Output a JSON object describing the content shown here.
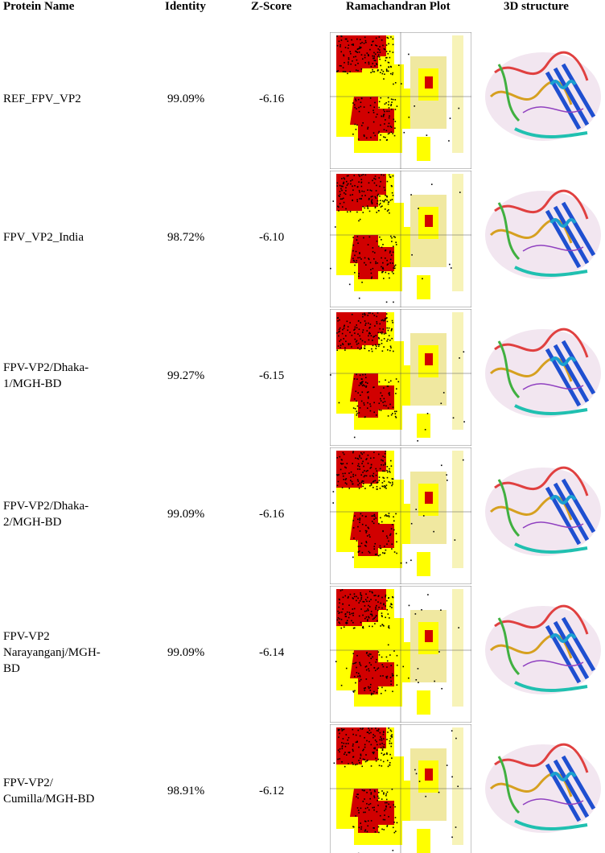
{
  "table": {
    "headers": [
      "Protein Name",
      "Identity",
      "Z-Score",
      "Ramachandran Plot",
      "3D structure"
    ],
    "rows": [
      {
        "name": [
          "REF_FPV_VP2"
        ],
        "identity": "99.09%",
        "zscore": "-6.16"
      },
      {
        "name": [
          "FPV_VP2_India"
        ],
        "identity": "98.72%",
        "zscore": "-6.10"
      },
      {
        "name": [
          "FPV-VP2/Dhaka-",
          "1/MGH-BD"
        ],
        "identity": "99.27%",
        "zscore": "-6.15"
      },
      {
        "name": [
          "FPV-VP2/Dhaka-",
          "2/MGH-BD"
        ],
        "identity": "99.09%",
        "zscore": "-6.16"
      },
      {
        "name": [
          "FPV-VP2",
          "Narayanganj/MGH-",
          "BD"
        ],
        "identity": "99.09%",
        "zscore": "-6.14"
      },
      {
        "name": [
          "FPV-VP2/",
          "Cumilla/MGH-BD"
        ],
        "identity": "98.91%",
        "zscore": "-6.12"
      }
    ]
  }
}
